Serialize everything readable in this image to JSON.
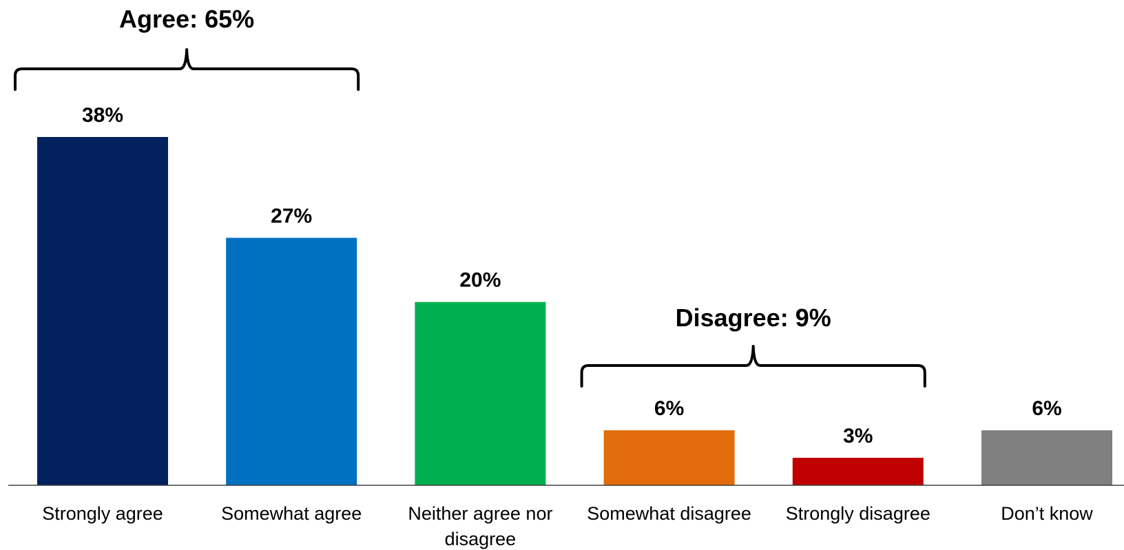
{
  "chart_data": {
    "type": "bar",
    "categories": [
      [
        "Strongly agree"
      ],
      [
        "Somewhat agree"
      ],
      [
        "Neither agree nor",
        "disagree"
      ],
      [
        "Somewhat disagree"
      ],
      [
        "Strongly disagree"
      ],
      [
        "Don’t know"
      ]
    ],
    "values": [
      38,
      27,
      20,
      6,
      3,
      6
    ],
    "value_labels": [
      "38%",
      "27%",
      "20%",
      "6%",
      "3%",
      "6%"
    ],
    "colors": [
      "#03215F",
      "#0070C0",
      "#00B050",
      "#E36C0A",
      "#C00000",
      "#808080"
    ],
    "title": "",
    "xlabel": "",
    "ylabel": "",
    "ylim": [
      0,
      38
    ],
    "grid": false,
    "annotations": [
      {
        "label": "Agree: 65%",
        "from": 0,
        "to": 1
      },
      {
        "label": "Disagree: 9%",
        "from": 3,
        "to": 4
      }
    ]
  }
}
